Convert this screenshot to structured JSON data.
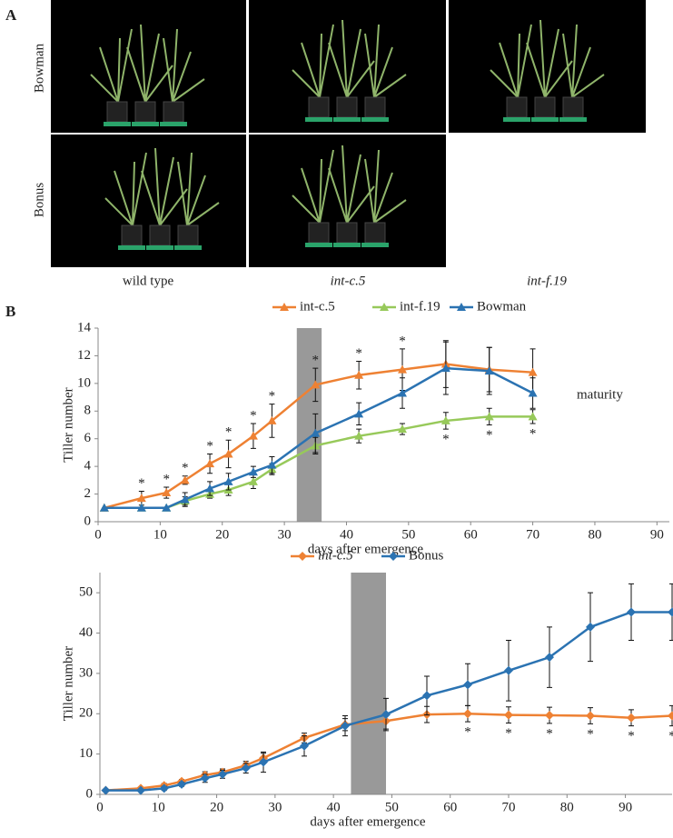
{
  "panel_a": {
    "label": "A",
    "rows": [
      "Bowman",
      "Bonus"
    ],
    "columns": [
      "wild type",
      "int-c.5",
      "int-f.19"
    ]
  },
  "panel_b": {
    "label": "B"
  },
  "chart_data": [
    {
      "type": "line",
      "marker": "triangle",
      "xlabel": "days after emergence",
      "ylabel": "Tiller number",
      "annotation": "maturity",
      "shade": [
        32,
        36
      ],
      "shade_color": "#999999",
      "xlim": [
        0,
        92
      ],
      "xticks": [
        0,
        10,
        20,
        30,
        40,
        50,
        60,
        70,
        80,
        90
      ],
      "ylim": [
        0,
        14
      ],
      "yticks": [
        0,
        2,
        4,
        6,
        8,
        10,
        12,
        14
      ],
      "x": [
        1,
        7,
        11,
        14,
        18,
        21,
        25,
        28,
        35,
        42,
        49,
        56,
        63,
        70
      ],
      "series": [
        {
          "name": "int-c.5",
          "color": "#ee8133",
          "significance_position": "above",
          "values": [
            1,
            1.7,
            2.1,
            3.0,
            4.2,
            4.9,
            6.2,
            7.3,
            9.9,
            10.6,
            11.0,
            11.4,
            11.0,
            10.8
          ],
          "errors": [
            0,
            0.5,
            0.4,
            0.3,
            0.7,
            1.0,
            0.9,
            1.2,
            1.2,
            1.0,
            1.5,
            1.7,
            1.6,
            1.7
          ],
          "significance": [
            null,
            "*",
            "*",
            "*",
            "*",
            "*",
            "*",
            "*",
            "*",
            "*",
            "*",
            null,
            null,
            null
          ]
        },
        {
          "name": "int-f.19",
          "color": "#97c95a",
          "significance_position": "below",
          "values": [
            1,
            1,
            1,
            1.5,
            2.0,
            2.3,
            2.9,
            3.8,
            5.5,
            6.2,
            6.7,
            7.3,
            7.6,
            7.6
          ],
          "errors": [
            0,
            0,
            0,
            0.3,
            0.3,
            0.4,
            0.5,
            0.4,
            0.6,
            0.5,
            0.4,
            0.6,
            0.6,
            0.5
          ],
          "significance": [
            null,
            null,
            null,
            null,
            null,
            null,
            null,
            null,
            null,
            null,
            null,
            "*",
            "*",
            "*"
          ]
        },
        {
          "name": "Bowman",
          "color": "#2b73b2",
          "significance_position": "above",
          "values": [
            1,
            1,
            1,
            1.6,
            2.4,
            2.9,
            3.6,
            4.1,
            6.4,
            7.8,
            9.3,
            11.1,
            10.9,
            9.3
          ],
          "errors": [
            0,
            0,
            0,
            0.5,
            0.5,
            0.6,
            0.4,
            0.6,
            1.4,
            0.8,
            1.1,
            1.9,
            1.7,
            1.1
          ],
          "significance": [
            null,
            null,
            null,
            null,
            null,
            null,
            null,
            null,
            null,
            null,
            null,
            null,
            null,
            null
          ]
        }
      ]
    },
    {
      "type": "line",
      "marker": "diamond",
      "xlabel": "days after emergence",
      "ylabel": "Tiller number",
      "shade": [
        43,
        49
      ],
      "shade_color": "#999999",
      "xlim": [
        0,
        98
      ],
      "xticks": [
        0,
        10,
        20,
        30,
        40,
        50,
        60,
        70,
        80,
        90
      ],
      "ylim": [
        0,
        55
      ],
      "yticks": [
        0,
        10,
        20,
        30,
        40,
        50
      ],
      "x": [
        1,
        7,
        11,
        14,
        18,
        21,
        25,
        28,
        35,
        42,
        49,
        56,
        63,
        70,
        77,
        84,
        91,
        98
      ],
      "series": [
        {
          "name": "int-c.5",
          "color": "#ee8133",
          "font_style": "italic",
          "significance_position": "below",
          "values": [
            1,
            1.5,
            2.2,
            3.2,
            4.8,
            5.5,
            7.2,
            9.0,
            14.0,
            17.3,
            18.2,
            19.8,
            20.0,
            19.7,
            19.6,
            19.5,
            19.0,
            19.5
          ],
          "errors": [
            0,
            0.3,
            0.5,
            0.5,
            0.8,
            0.8,
            1,
            1.2,
            1.2,
            1.5,
            2,
            2,
            2,
            2,
            2,
            2,
            2,
            2.5
          ],
          "significance": [
            null,
            null,
            null,
            null,
            null,
            null,
            null,
            null,
            null,
            null,
            null,
            null,
            "*",
            "*",
            "*",
            "*",
            "*",
            "*"
          ]
        },
        {
          "name": "Bonus",
          "color": "#2b73b2",
          "font_style": "normal",
          "significance_position": "above",
          "values": [
            1,
            1,
            1.5,
            2.5,
            4.0,
            5.0,
            6.5,
            8.0,
            12.0,
            17.0,
            19.8,
            24.5,
            27.2,
            30.7,
            34.0,
            41.5,
            45.2,
            45.2
          ],
          "errors": [
            0,
            0,
            0.5,
            0.5,
            1,
            1,
            1.2,
            2.5,
            2.5,
            2.5,
            4,
            4.8,
            5.2,
            7.5,
            7.5,
            8.5,
            7,
            7
          ],
          "significance": [
            null,
            null,
            null,
            null,
            null,
            null,
            null,
            null,
            null,
            null,
            null,
            null,
            null,
            null,
            null,
            null,
            null,
            null
          ]
        }
      ]
    }
  ]
}
